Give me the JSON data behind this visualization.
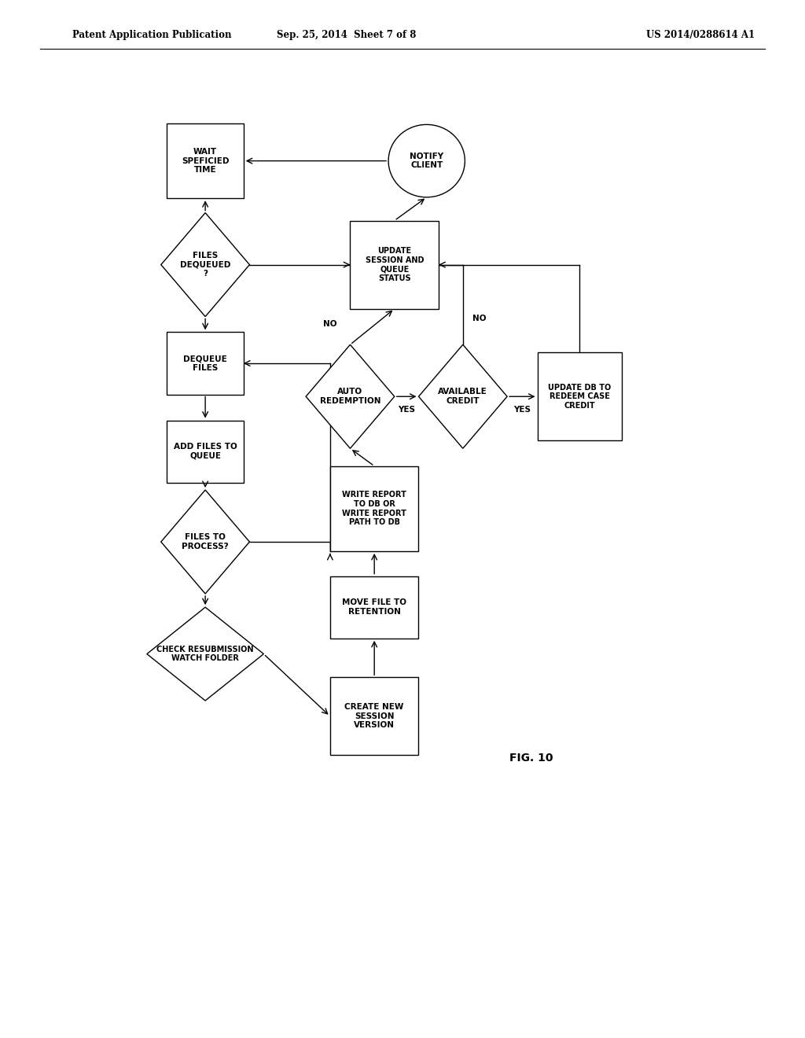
{
  "title_left": "Patent Application Publication",
  "title_center": "Sep. 25, 2014  Sheet 7 of 8",
  "title_right": "US 2014/0288614 A1",
  "fig_label": "FIG. 10",
  "background": "#ffffff"
}
